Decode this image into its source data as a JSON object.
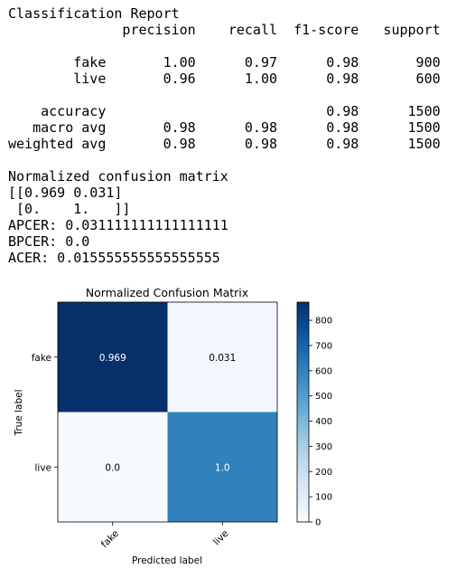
{
  "report": {
    "lines": [
      "Classification Report",
      "              precision    recall  f1-score   support",
      "",
      "        fake       1.00      0.97      0.98       900",
      "        live       0.96      1.00      0.98       600",
      "",
      "    accuracy                           0.98      1500",
      "   macro avg       0.98      0.98      0.98      1500",
      "weighted avg       0.98      0.98      0.98      1500",
      "",
      "Normalized confusion matrix",
      "[[0.969 0.031]",
      " [0.    1.   ]]",
      "APCER: 0.031111111111111111",
      "BPCER: 0.0",
      "ACER: 0.015555555555555555"
    ]
  },
  "chart_data": {
    "type": "heatmap",
    "title": "Normalized Confusion Matrix",
    "xlabel": "Predicted label",
    "ylabel": "True label",
    "x_categories": [
      "fake",
      "live"
    ],
    "y_categories": [
      "fake",
      "live"
    ],
    "cells": [
      [
        {
          "label": "0.969",
          "count": 872
        },
        {
          "label": "0.031",
          "count": 28
        }
      ],
      [
        {
          "label": "0.0",
          "count": 0
        },
        {
          "label": "1.0",
          "count": 600
        }
      ]
    ],
    "colormap": "Blues",
    "colorbar": {
      "min": 0,
      "max": 872,
      "ticks": [
        0,
        100,
        200,
        300,
        400,
        500,
        600,
        700,
        800
      ]
    },
    "colors": {
      "low": "#f7fbff",
      "high": "#08306b",
      "text_dark": "#000000",
      "text_light": "#ffffff"
    }
  }
}
